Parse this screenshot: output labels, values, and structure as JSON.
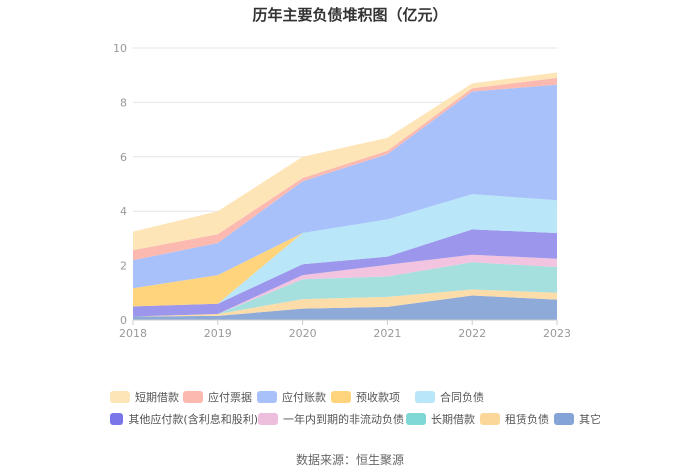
{
  "chart_data": {
    "type": "area",
    "stacked": true,
    "title": "历年主要负债堆积图（亿元）",
    "xlabel": "",
    "ylabel": "",
    "x": [
      "2018",
      "2019",
      "2020",
      "2021",
      "2022",
      "2023"
    ],
    "ylim": [
      0,
      10
    ],
    "yticks": [
      "0",
      "2",
      "4",
      "6",
      "8",
      "10"
    ],
    "grid": true,
    "legend_position": "bottom",
    "series": [
      {
        "name": "其它",
        "color": "#8eaad8",
        "values": [
          0.13,
          0.15,
          0.42,
          0.48,
          0.9,
          0.75
        ]
      },
      {
        "name": "租赁负债",
        "color": "#fcdca8",
        "values": [
          0.0,
          0.07,
          0.35,
          0.37,
          0.22,
          0.25
        ]
      },
      {
        "name": "长期借款",
        "color": "#a6e0de",
        "values": [
          0.0,
          0.0,
          0.73,
          0.75,
          1.0,
          0.95
        ]
      },
      {
        "name": "一年内到期的非流动负债",
        "color": "#f2c4e0",
        "values": [
          0.0,
          0.0,
          0.15,
          0.43,
          0.28,
          0.3
        ]
      },
      {
        "name": "其他应付款(含利息和股利)",
        "color": "#9c97ec",
        "values": [
          0.37,
          0.38,
          0.4,
          0.3,
          0.93,
          0.95
        ]
      },
      {
        "name": "合同负债",
        "color": "#b9e6f8",
        "values": [
          0.0,
          0.0,
          1.15,
          1.37,
          1.3,
          1.2
        ]
      },
      {
        "name": "预收款项",
        "color": "#ffd47c",
        "values": [
          0.67,
          1.05,
          0.0,
          0.0,
          0.0,
          0.0
        ]
      },
      {
        "name": "应付账款",
        "color": "#a9c1fb",
        "values": [
          1.03,
          1.18,
          1.9,
          2.4,
          3.77,
          4.25
        ]
      },
      {
        "name": "应付票据",
        "color": "#fbb9b0",
        "values": [
          0.37,
          0.32,
          0.12,
          0.12,
          0.12,
          0.25
        ]
      },
      {
        "name": "短期借款",
        "color": "#fde5b8",
        "values": [
          0.68,
          0.85,
          0.78,
          0.48,
          0.18,
          0.2
        ]
      }
    ]
  },
  "legend": {
    "row1": [
      {
        "label": "短期借款",
        "color": "#fde5b8"
      },
      {
        "label": "应付票据",
        "color": "#fbb9b0"
      },
      {
        "label": "应付账款",
        "color": "#a9c1fb"
      },
      {
        "label": "预收款项",
        "color": "#ffd47c"
      },
      {
        "label": "合同负债",
        "color": "#b9e6f8"
      }
    ],
    "row2": [
      {
        "label": "其他应付款(含利息和股利)",
        "color": "#7a76e9"
      },
      {
        "label": "一年内到期的非流动负债",
        "color": "#eebfdd"
      },
      {
        "label": "长期借款",
        "color": "#7fd8d4"
      },
      {
        "label": "租赁负债",
        "color": "#fcd79a"
      },
      {
        "label": "其它",
        "color": "#84a3d6"
      }
    ]
  },
  "footer": {
    "source": "数据来源：恒生聚源"
  }
}
